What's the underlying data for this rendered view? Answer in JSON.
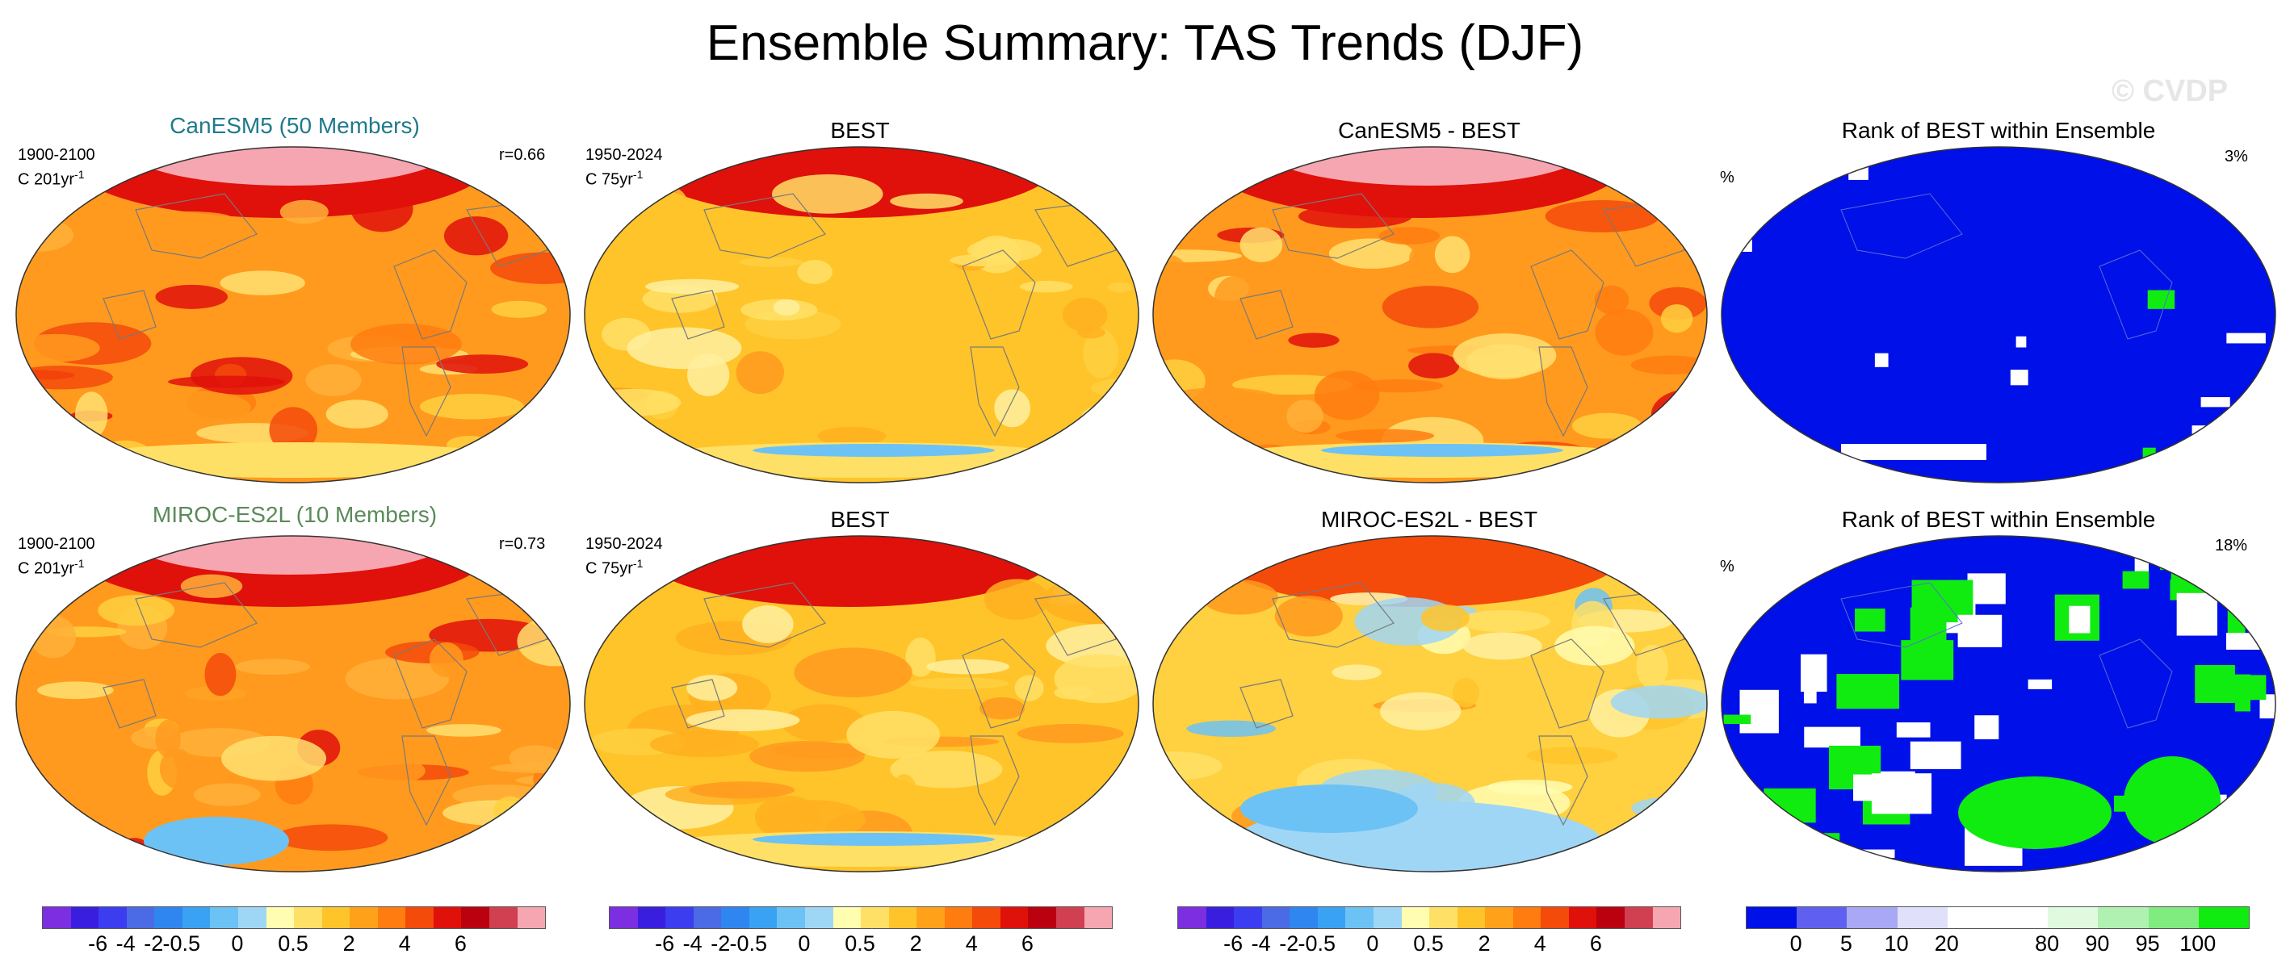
{
  "title": "Ensemble Summary: TAS Trends (DJF)",
  "watermark": "© CVDP",
  "rows": [
    {
      "model_title": "CanESM5 (50 Members)",
      "model_title_color": "#1f7a8c",
      "model_period": "1900-2100",
      "model_units": "C 201yr",
      "model_units_sup": "-1",
      "correlation": "r=0.66",
      "obs_title": "BEST",
      "obs_period": "1950-2024",
      "obs_units": "C 75yr",
      "obs_units_sup": "-1",
      "diff_title": "CanESM5 - BEST",
      "rank_title": "Rank of BEST within Ensemble",
      "rank_unit": "%",
      "rank_pct": "3%"
    },
    {
      "model_title": "MIROC-ES2L (10 Members)",
      "model_title_color": "#5a8a5a",
      "model_period": "1900-2100",
      "model_units": "C 201yr",
      "model_units_sup": "-1",
      "correlation": "r=0.73",
      "obs_title": "BEST",
      "obs_period": "1950-2024",
      "obs_units": "C 75yr",
      "obs_units_sup": "-1",
      "diff_title": "MIROC-ES2L - BEST",
      "rank_title": "Rank of BEST within Ensemble",
      "rank_unit": "%",
      "rank_pct": "18%"
    }
  ],
  "trend_colorbar": {
    "colors": [
      "#7b2fe0",
      "#3a1ee0",
      "#3c3cf0",
      "#4a6ae6",
      "#2f86f0",
      "#3aa2f2",
      "#6cc2f4",
      "#9fd6f6",
      "#fffdb0",
      "#ffe066",
      "#ffc42a",
      "#ffa21a",
      "#ff7c10",
      "#f44a0a",
      "#e0100a",
      "#bb0010",
      "#d04050",
      "#f6a6b0"
    ],
    "labels": [
      "-6",
      "-4",
      "-2",
      "-0.5",
      "0",
      "0.5",
      "2",
      "4",
      "6"
    ]
  },
  "rank_colorbar": {
    "colors": [
      "#0010e8",
      "#6060f0",
      "#a8a8f4",
      "#e0e0fa",
      "#ffffff",
      "#ffffff",
      "#e0fae0",
      "#b0f0b0",
      "#80ec80",
      "#10ec10"
    ],
    "labels": [
      "0",
      "5",
      "10",
      "20",
      "80",
      "90",
      "95",
      "100"
    ]
  }
}
